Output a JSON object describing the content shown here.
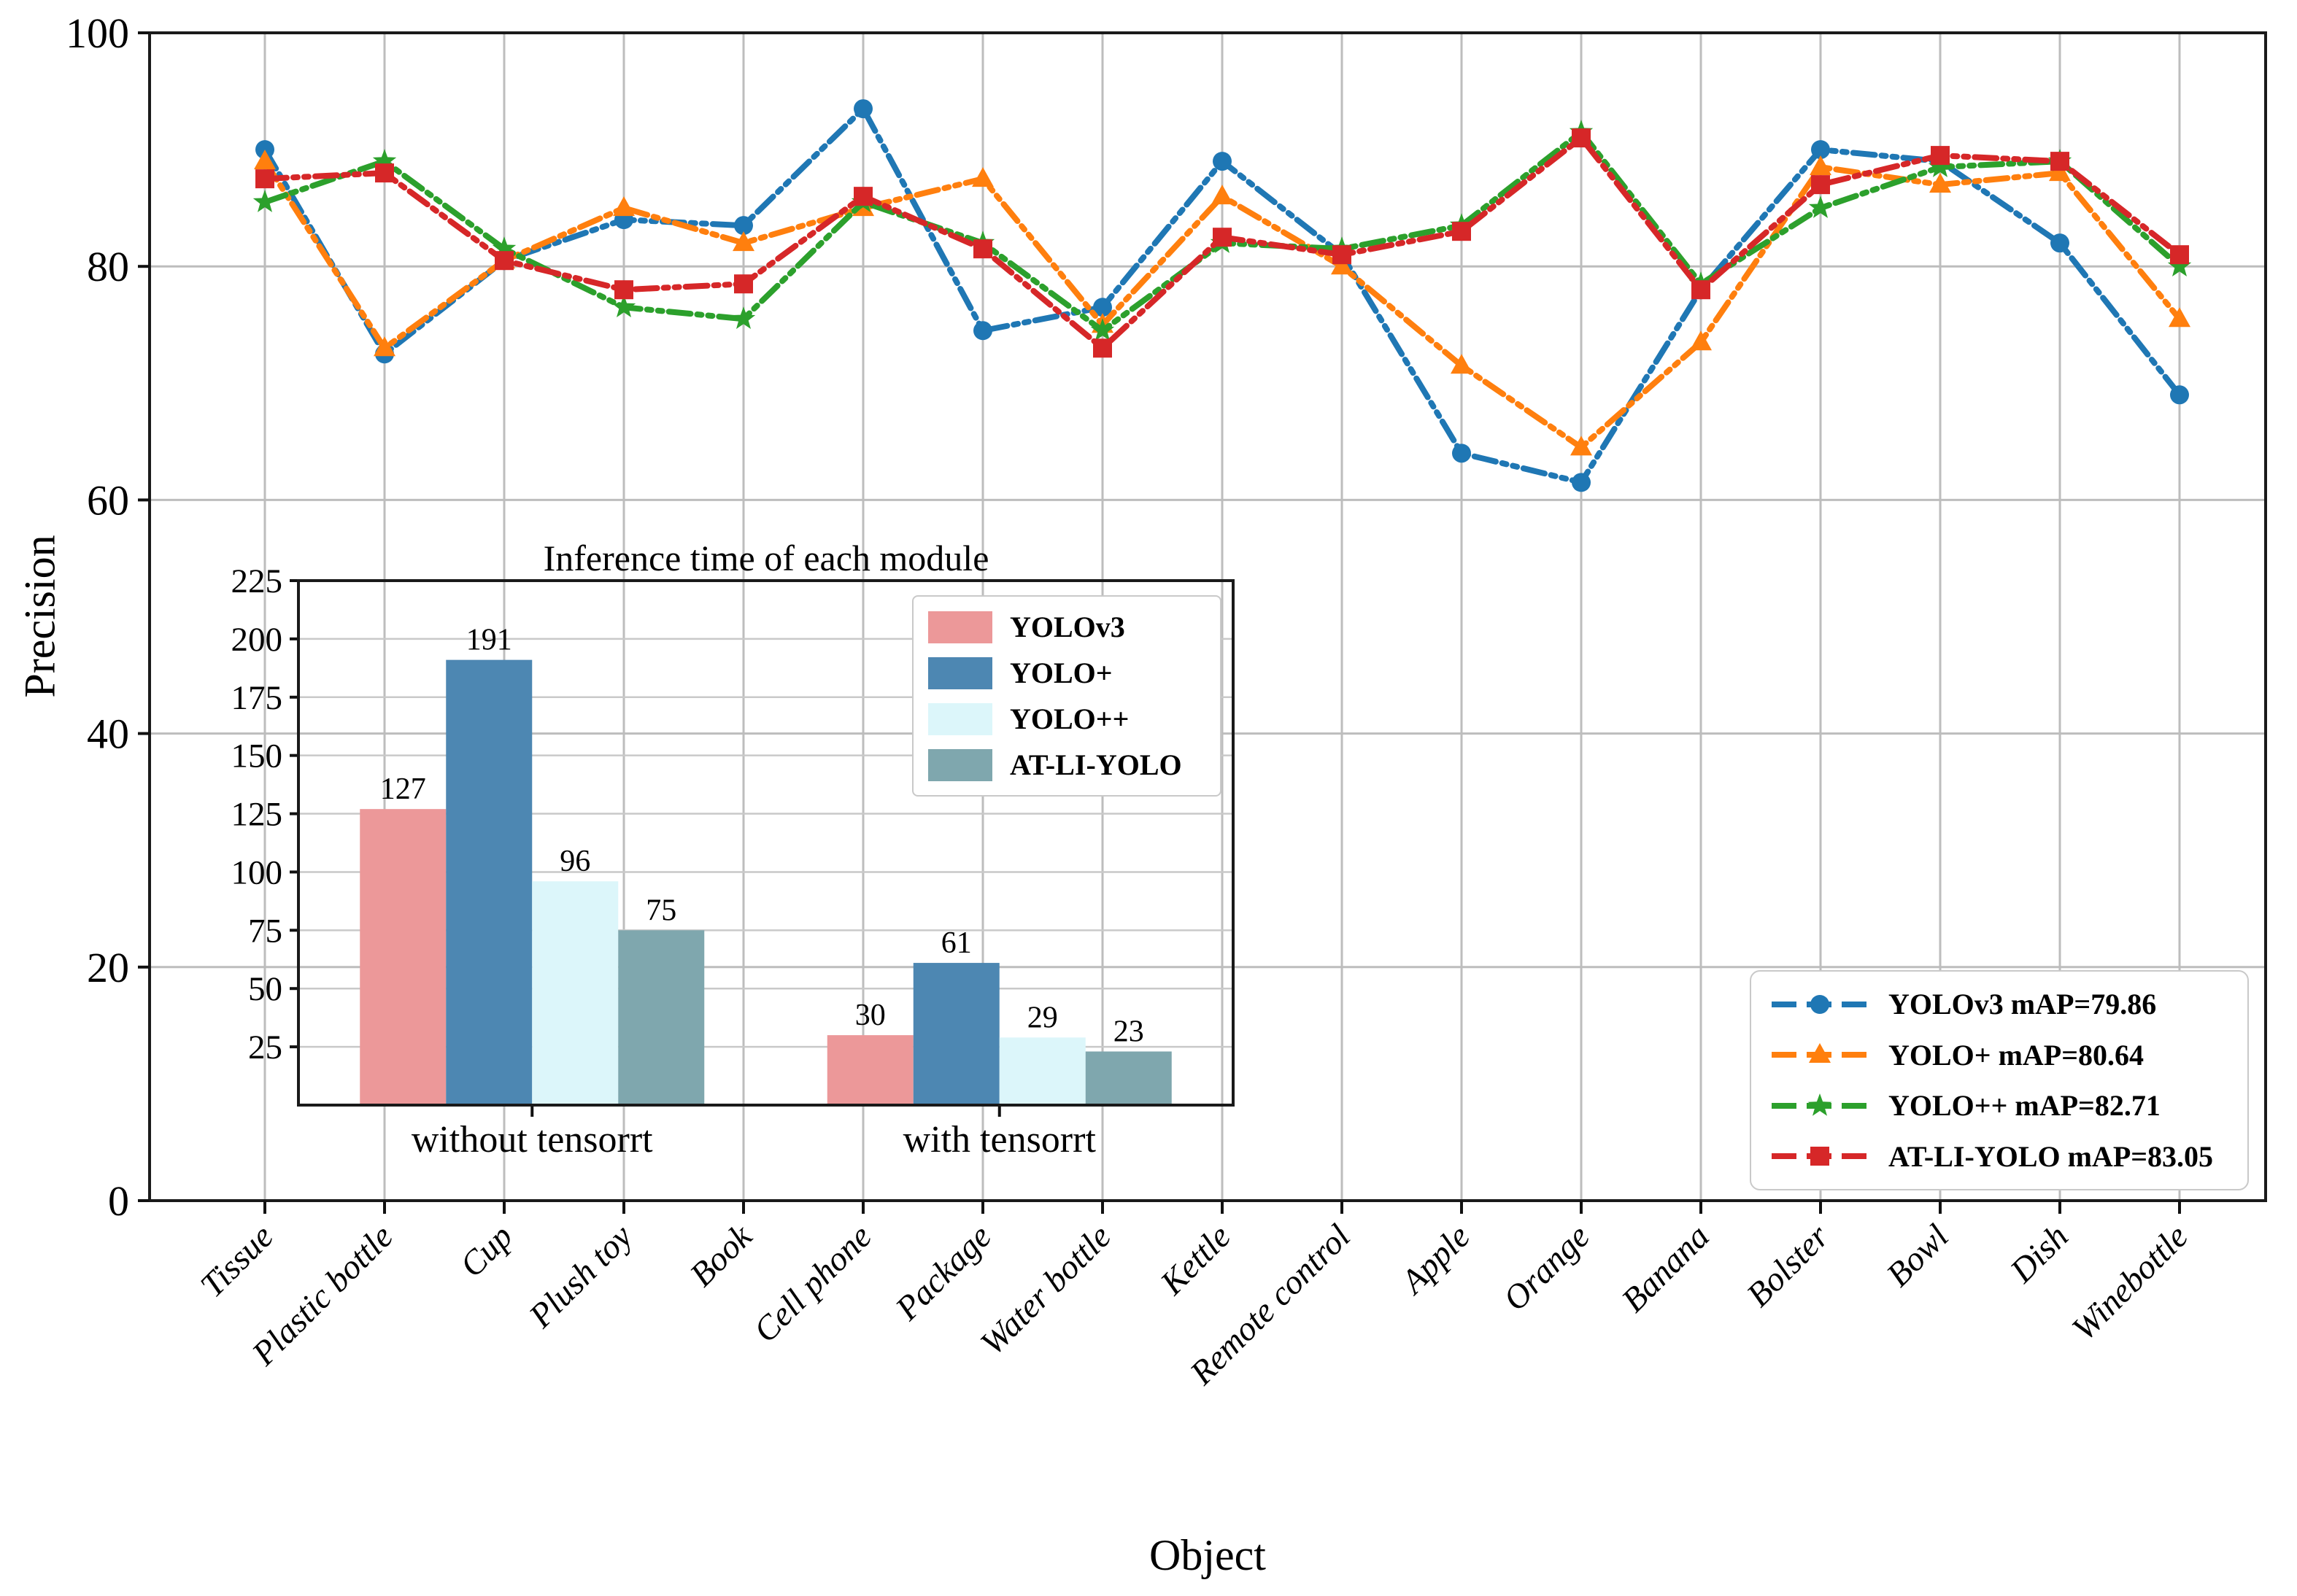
{
  "figure": {
    "background": "#ffffff"
  },
  "chart_data": [
    {
      "type": "line",
      "title": "",
      "xlabel": "Object",
      "ylabel": "Precision",
      "ylim": [
        0,
        100
      ],
      "yticks": [
        0,
        20,
        40,
        60,
        80,
        100
      ],
      "grid": true,
      "legend_position": "lower right",
      "categories": [
        "Tissue",
        "Plastic bottle",
        "Cup",
        "Plush toy",
        "Book",
        "Cell phone",
        "Package",
        "Water bottle",
        "Kettle",
        "Remote control",
        "Apple",
        "Orange",
        "Banana",
        "Bolster",
        "Bowl",
        "Dish",
        "Winebottle"
      ],
      "series": [
        {
          "name": "YOLOv3",
          "legend": "YOLOv3  mAP=79.86",
          "color": "#1f77b4",
          "marker": "circle",
          "linestyle": "dashdotdot",
          "values": [
            90,
            72.5,
            80.5,
            84,
            83.5,
            93.5,
            74.5,
            76.5,
            89,
            81,
            64,
            61.5,
            78,
            90,
            89,
            82,
            69
          ]
        },
        {
          "name": "YOLO+",
          "legend": "YOLO+  mAP=80.64",
          "color": "#ff7f0e",
          "marker": "triangle",
          "linestyle": "dashdotdot",
          "values": [
            89,
            73,
            80.5,
            85,
            82,
            85,
            87.5,
            75,
            86,
            80,
            71.5,
            64.5,
            73.5,
            88.5,
            87,
            88,
            75.5
          ]
        },
        {
          "name": "YOLO++",
          "legend": "YOLO++  mAP=82.71",
          "color": "#2ca02c",
          "marker": "star",
          "linestyle": "dashdotdot",
          "values": [
            85.5,
            89,
            81.5,
            76.5,
            75.5,
            85.5,
            82,
            74.5,
            82,
            81.5,
            83.5,
            91.5,
            78.5,
            85,
            88.5,
            89,
            80
          ]
        },
        {
          "name": "AT-LI-YOLO",
          "legend": "AT-LI-YOLO  mAP=83.05",
          "color": "#d62728",
          "marker": "square",
          "linestyle": "dashdotdot",
          "values": [
            87.5,
            88,
            80.5,
            78,
            78.5,
            86,
            81.5,
            73,
            82.5,
            81,
            83,
            91,
            78,
            87,
            89.5,
            89,
            81
          ]
        }
      ]
    },
    {
      "type": "bar",
      "title": "Inference time of each module",
      "categories": [
        "without tensorrt",
        "with tensorrt"
      ],
      "ylim": [
        0,
        225
      ],
      "yticks": [
        25,
        50,
        75,
        100,
        125,
        150,
        175,
        200,
        225
      ],
      "grid": true,
      "legend_position": "upper right",
      "series": [
        {
          "name": "YOLOv3",
          "color": "#ec9899",
          "values": [
            127,
            30
          ]
        },
        {
          "name": "YOLO+",
          "color": "#4d87b2",
          "values": [
            191,
            61
          ]
        },
        {
          "name": "YOLO++",
          "color": "#dcf6fa",
          "values": [
            96,
            29
          ]
        },
        {
          "name": "AT-LI-YOLO",
          "color": "#7fa7ae",
          "values": [
            75,
            23
          ]
        }
      ]
    }
  ]
}
